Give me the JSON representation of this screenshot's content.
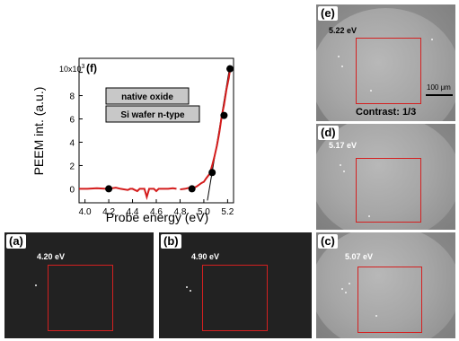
{
  "chart_data": {
    "type": "line",
    "panel_label": "(f)",
    "xlabel": "Probe energy (eV)",
    "ylabel": "PEEM int. (a.u.)",
    "y_multiplier_label": "10x10",
    "y_multiplier_exponent": "3",
    "xlim": [
      3.95,
      5.25
    ],
    "ylim": [
      -0.12,
      1.12
    ],
    "x_ticks": [
      4.0,
      4.2,
      4.4,
      4.6,
      4.8,
      5.0,
      5.2
    ],
    "x_tick_labels": [
      "4.0",
      "4.2",
      "4.4",
      "4.6",
      "4.8",
      "5.0",
      "5.2"
    ],
    "y_ticks": [
      0,
      0.2,
      0.4,
      0.6,
      0.8,
      1.0
    ],
    "y_tick_labels": [
      "0",
      "2",
      "4",
      "6",
      "8",
      ""
    ],
    "legend": [
      "native oxide",
      "Si wafer n-type"
    ],
    "curve_segments": [
      [
        [
          3.95,
          0.0
        ],
        [
          4.02,
          0.0
        ],
        [
          4.1,
          0.005
        ],
        [
          4.18,
          0.0
        ],
        [
          4.2,
          0.0
        ],
        [
          4.26,
          0.01
        ],
        [
          4.3,
          0.0
        ],
        [
          4.36,
          -0.01
        ],
        [
          4.38,
          0.0
        ],
        [
          4.4,
          0.0
        ],
        [
          4.44,
          -0.02
        ],
        [
          4.46,
          0.0
        ],
        [
          4.5,
          0.0
        ],
        [
          4.52,
          -0.07
        ],
        [
          4.54,
          0.0
        ],
        [
          4.58,
          0.0
        ],
        [
          4.6,
          -0.02
        ],
        [
          4.62,
          0.0
        ],
        [
          4.66,
          0.0
        ],
        [
          4.7,
          0.0
        ],
        [
          4.74,
          0.005
        ],
        [
          4.77,
          0.0
        ]
      ],
      [
        [
          4.8,
          -0.005
        ],
        [
          4.84,
          0.0
        ],
        [
          4.88,
          0.01
        ],
        [
          4.9,
          0.0
        ],
        [
          4.94,
          0.02
        ],
        [
          4.98,
          0.05
        ],
        [
          5.0,
          0.06
        ],
        [
          5.02,
          0.09
        ],
        [
          5.05,
          0.13
        ],
        [
          5.07,
          0.2
        ],
        [
          5.09,
          0.28
        ],
        [
          5.11,
          0.37
        ],
        [
          5.13,
          0.48
        ],
        [
          5.15,
          0.62
        ],
        [
          5.17,
          0.72
        ],
        [
          5.19,
          0.85
        ],
        [
          5.21,
          0.95
        ],
        [
          5.22,
          1.02
        ],
        [
          5.225,
          1.05
        ]
      ]
    ],
    "markers": [
      [
        4.2,
        0.0
      ],
      [
        4.9,
        0.0
      ],
      [
        5.07,
        0.14
      ],
      [
        5.17,
        0.63
      ],
      [
        5.22,
        1.03
      ]
    ],
    "fit_line": [
      [
        5.03,
        -0.1
      ],
      [
        5.22,
        1.06
      ]
    ],
    "curve_color": "#d41c1c"
  },
  "images": [
    {
      "label": "(a)",
      "energy": "4.20 eV"
    },
    {
      "label": "(b)",
      "energy": "4.90 eV"
    },
    {
      "label": "(c)",
      "energy": "5.07 eV"
    },
    {
      "label": "(d)",
      "energy": "5.17 eV"
    },
    {
      "label": "(e)",
      "energy": "5.22 eV"
    }
  ],
  "scale_bar": "100 μm",
  "contrast": "Contrast: 1/3",
  "roi_color": "#d42020"
}
